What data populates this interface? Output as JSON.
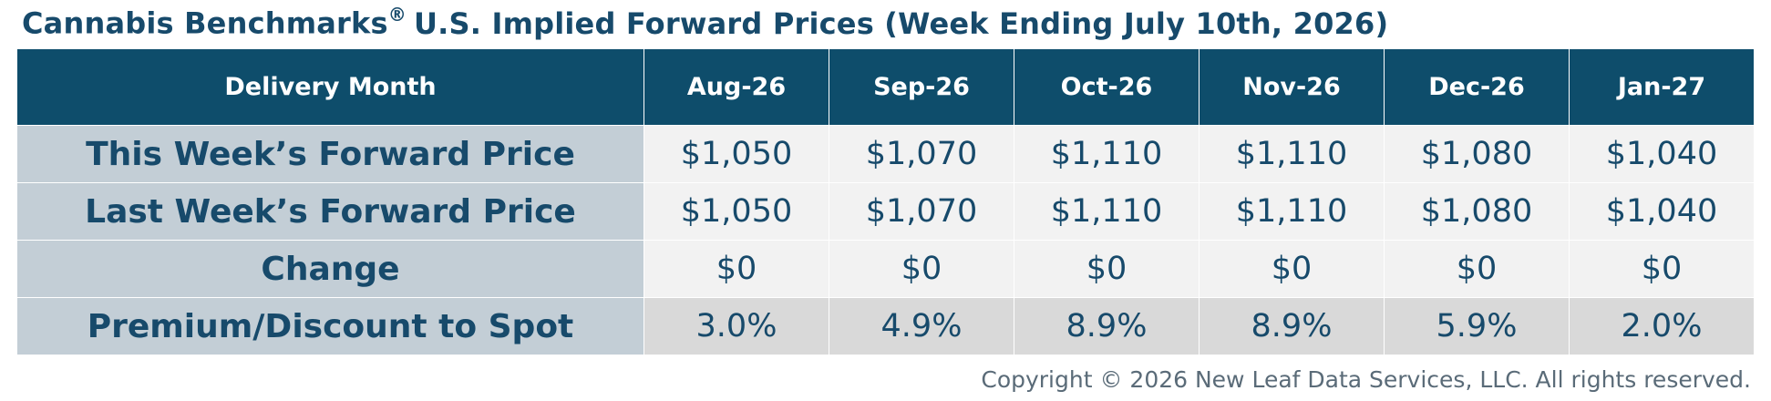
{
  "title": {
    "brand": "Cannabis Benchmarks",
    "mark": "®",
    "rest": "U.S. Implied Forward Prices (Week Ending July 10th, 2026)"
  },
  "table": {
    "header": [
      "Delivery Month",
      "Aug-26",
      "Sep-26",
      "Oct-26",
      "Nov-26",
      "Dec-26",
      "Jan-27"
    ],
    "rows": [
      [
        "This Week’s Forward Price",
        "$1,050",
        "$1,070",
        "$1,110",
        "$1,110",
        "$1,080",
        "$1,040"
      ],
      [
        "Last Week’s Forward Price",
        "$1,050",
        "$1,070",
        "$1,110",
        "$1,110",
        "$1,080",
        "$1,040"
      ],
      [
        "Change",
        "$0",
        "$0",
        "$0",
        "$0",
        "$0",
        "$0"
      ],
      [
        "Premium/Discount to Spot",
        "3.0%",
        "4.9%",
        "8.9%",
        "8.9%",
        "5.9%",
        "2.0%"
      ]
    ]
  },
  "footer": "Copyright © 2026 New Leaf Data Services, LLC. All rights reserved."
}
